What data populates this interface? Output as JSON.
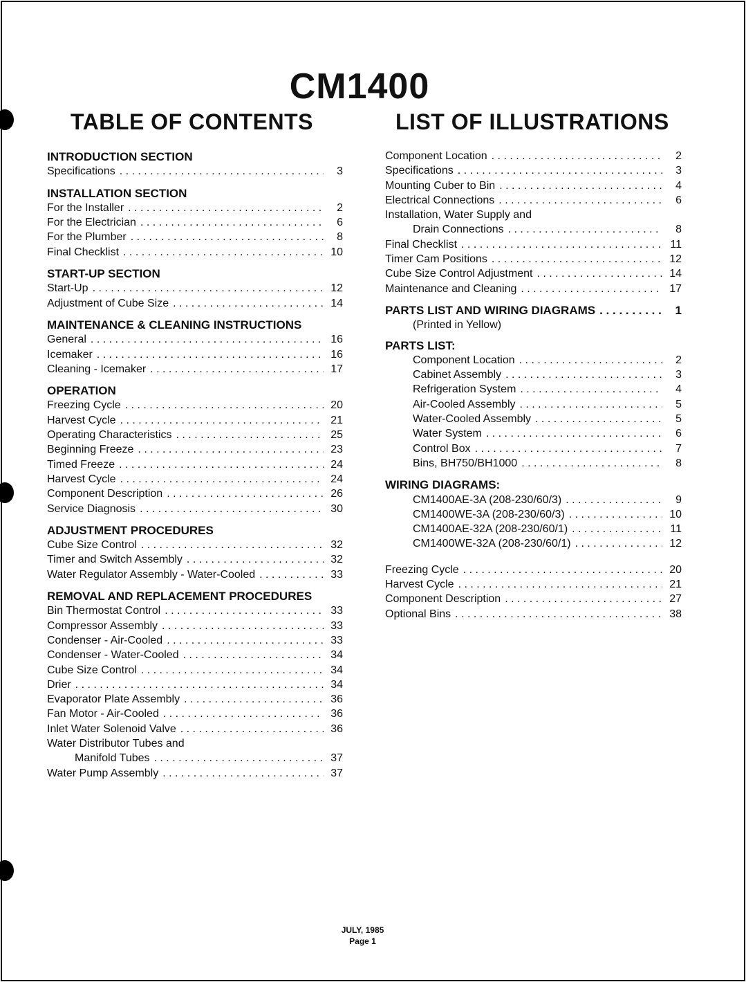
{
  "title": "CM1400",
  "toc": {
    "heading": "TABLE OF CONTENTS",
    "groups": [
      {
        "heading": "INTRODUCTION SECTION",
        "items": [
          {
            "label": "Specifications",
            "page": "3"
          }
        ]
      },
      {
        "heading": "INSTALLATION SECTION",
        "items": [
          {
            "label": "For the Installer",
            "page": "2"
          },
          {
            "label": "For the Electrician",
            "page": "6"
          },
          {
            "label": "For the Plumber",
            "page": "8"
          },
          {
            "label": "Final Checklist",
            "page": "10"
          }
        ]
      },
      {
        "heading": "START-UP SECTION",
        "items": [
          {
            "label": "Start-Up",
            "page": "12"
          },
          {
            "label": "Adjustment of Cube Size",
            "page": "14"
          }
        ]
      },
      {
        "heading": "MAINTENANCE & CLEANING INSTRUCTIONS",
        "items": [
          {
            "label": "General",
            "page": "16"
          },
          {
            "label": "Icemaker",
            "page": "16"
          },
          {
            "label": "Cleaning - Icemaker",
            "page": "17"
          }
        ]
      },
      {
        "heading": "OPERATION",
        "items": [
          {
            "label": "Freezing Cycle",
            "page": "20"
          },
          {
            "label": "Harvest Cycle",
            "page": "21"
          },
          {
            "label": "Operating Characteristics",
            "page": "25"
          },
          {
            "label": "Beginning Freeze",
            "page": "23"
          },
          {
            "label": "Timed Freeze",
            "page": "24"
          },
          {
            "label": "Harvest Cycle",
            "page": "24"
          },
          {
            "label": "Component Description",
            "page": "26"
          },
          {
            "label": "Service Diagnosis",
            "page": "30"
          }
        ]
      },
      {
        "heading": "ADJUSTMENT PROCEDURES",
        "items": [
          {
            "label": "Cube Size Control",
            "page": "32"
          },
          {
            "label": "Timer and Switch Assembly",
            "page": "32"
          },
          {
            "label": "Water Regulator Assembly - Water-Cooled",
            "page": "33"
          }
        ]
      },
      {
        "heading": "REMOVAL AND REPLACEMENT PROCEDURES",
        "items": [
          {
            "label": "Bin Thermostat Control",
            "page": "33"
          },
          {
            "label": "Compressor Assembly",
            "page": "33"
          },
          {
            "label": "Condenser - Air-Cooled",
            "page": "33"
          },
          {
            "label": "Condenser - Water-Cooled",
            "page": "34"
          },
          {
            "label": "Cube Size Control",
            "page": "34"
          },
          {
            "label": "Drier",
            "page": "34"
          },
          {
            "label": "Evaporator Plate Assembly",
            "page": "36"
          },
          {
            "label": "Fan Motor - Air-Cooled",
            "page": "36"
          },
          {
            "label": "Inlet Water Solenoid Valve",
            "page": "36"
          },
          {
            "label": "Water Distributor Tubes and",
            "page": ""
          },
          {
            "label": "Manifold Tubes",
            "page": "37",
            "indent": 1
          },
          {
            "label": "Water Pump Assembly",
            "page": "37"
          }
        ]
      }
    ]
  },
  "illustrations": {
    "heading": "LIST OF ILLUSTRATIONS",
    "groups": [
      {
        "heading": "",
        "items": [
          {
            "label": "Component Location",
            "page": "2"
          },
          {
            "label": "Specifications",
            "page": "3"
          },
          {
            "label": "Mounting Cuber to Bin",
            "page": "4"
          },
          {
            "label": "Electrical Connections",
            "page": "6"
          },
          {
            "label": "Installation, Water Supply and",
            "page": ""
          },
          {
            "label": "Drain Connections",
            "page": "8",
            "indent": 1
          },
          {
            "label": "Final Checklist",
            "page": "11"
          },
          {
            "label": "Timer Cam Positions",
            "page": "12"
          },
          {
            "label": "Cube Size Control Adjustment",
            "page": "14"
          },
          {
            "label": "Maintenance and Cleaning",
            "page": "17"
          }
        ]
      },
      {
        "heading": "PARTS LIST AND WIRING DIAGRAMS",
        "heading_page": "1",
        "items": [
          {
            "label": "(Printed in Yellow)",
            "page": "",
            "indent": 1
          }
        ]
      },
      {
        "heading": "PARTS LIST:",
        "items": [
          {
            "label": "Component Location",
            "page": "2",
            "indent": 1
          },
          {
            "label": "Cabinet Assembly",
            "page": "3",
            "indent": 1
          },
          {
            "label": "Refrigeration System",
            "page": "4",
            "indent": 1
          },
          {
            "label": "Air-Cooled Assembly",
            "page": "5",
            "indent": 1
          },
          {
            "label": "Water-Cooled Assembly",
            "page": "5",
            "indent": 1
          },
          {
            "label": "Water System",
            "page": "6",
            "indent": 1
          },
          {
            "label": "Control Box",
            "page": "7",
            "indent": 1
          },
          {
            "label": "Bins, BH750/BH1000",
            "page": "8",
            "indent": 1
          }
        ]
      },
      {
        "heading": "WIRING DIAGRAMS:",
        "items": [
          {
            "label": "CM1400AE-3A (208-230/60/3)",
            "page": "9",
            "indent": 1
          },
          {
            "label": "CM1400WE-3A (208-230/60/3)",
            "page": "10",
            "indent": 1
          },
          {
            "label": "CM1400AE-32A (208-230/60/1)",
            "page": "11",
            "indent": 1
          },
          {
            "label": "CM1400WE-32A (208-230/60/1)",
            "page": "12",
            "indent": 1
          }
        ]
      },
      {
        "heading": "",
        "items": [
          {
            "label": "Freezing Cycle",
            "page": "20"
          },
          {
            "label": "Harvest Cycle",
            "page": "21"
          },
          {
            "label": "Component Description",
            "page": "27"
          },
          {
            "label": "Optional Bins",
            "page": "38"
          }
        ]
      }
    ]
  },
  "footer": {
    "date": "JULY, 1985",
    "page": "Page 1"
  }
}
